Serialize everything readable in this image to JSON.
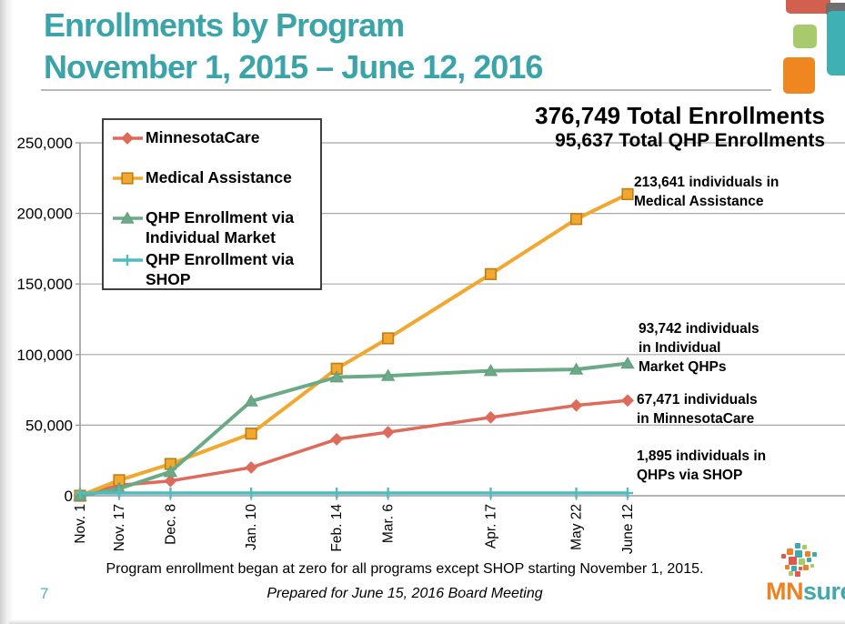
{
  "slide": {
    "title_line1": "Enrollments by Program",
    "title_line2": "November 1, 2015 – June 12, 2016",
    "page_number": "7",
    "footer_note": "Program enrollment began at zero for all programs except SHOP starting November 1, 2015.",
    "footer_prepared": "Prepared for June 15, 2016 Board Meeting"
  },
  "totals": {
    "total_enrollments": "376,749 Total Enrollments",
    "total_qhp_enrollments": "95,637 Total QHP Enrollments"
  },
  "annotations": [
    "213,641 individuals in\nMedical Assistance",
    "93,742 individuals\nin Individual\nMarket QHPs",
    "67,471 individuals\nin MinnesotaCare",
    "1,895 individuals in\nQHPs via SHOP"
  ],
  "logo": {
    "mn": "MN",
    "sure": "sure"
  },
  "chart_data": {
    "type": "line",
    "title": "",
    "xlabel": "",
    "ylabel": "",
    "ylim": [
      0,
      250000
    ],
    "grid": true,
    "legend_position": "upper-left",
    "x_tick_labels": [
      "Nov. 1",
      "Nov. 17",
      "Dec. 8",
      "Jan. 10",
      "Feb. 14",
      "Mar. 6",
      "Apr. 17",
      "May 22",
      "June 12"
    ],
    "x_day_offsets": [
      0,
      16,
      37,
      70,
      105,
      126,
      168,
      203,
      224
    ],
    "y_tick_labels": [
      "0",
      "50,000",
      "100,000",
      "150,000",
      "200,000",
      "250,000"
    ],
    "y_tick_values": [
      0,
      50000,
      100000,
      150000,
      200000,
      250000
    ],
    "series": [
      {
        "name": "MinnesotaCare",
        "color": "#dd6a5b",
        "marker": "diamond",
        "marker_border": "#dd6a5b",
        "line_width": 3.5,
        "values": [
          0,
          7500,
          10500,
          20000,
          40000,
          45000,
          55500,
          64000,
          67471
        ],
        "final_value": 67471
      },
      {
        "name": "Medical Assistance",
        "color": "#f2a72e",
        "marker": "square",
        "marker_border": "#bf7d15",
        "line_width": 4,
        "values": [
          0,
          11000,
          22500,
          44000,
          90000,
          111500,
          157000,
          196000,
          213641
        ],
        "final_value": 213641
      },
      {
        "name": "QHP Enrollment via Individual Market",
        "color": "#6baa87",
        "marker": "triangle",
        "marker_border": "#5f9e7c",
        "line_width": 4,
        "values": [
          0,
          5000,
          17000,
          67000,
          84000,
          85000,
          88500,
          89500,
          93742
        ],
        "final_value": 93742
      },
      {
        "name": "QHP Enrollment via SHOP",
        "color": "#4fbcc0",
        "marker": "plus",
        "marker_border": "#4fbcc0",
        "line_width": 3.5,
        "values": [
          1895,
          1895,
          1895,
          1895,
          1895,
          1895,
          1895,
          1895,
          1895
        ],
        "final_value": 1895
      }
    ]
  }
}
